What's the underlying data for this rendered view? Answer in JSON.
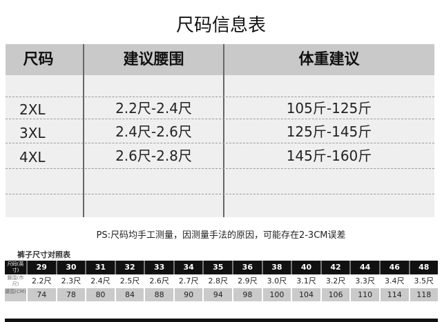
{
  "title": "尺码信息表",
  "main_table": {
    "headers": [
      "尺码",
      "建议腰围",
      "体重建议"
    ],
    "rows": [
      [
        "2XL",
        "2.2尺-2.4尺",
        "105斤-125斤"
      ],
      [
        "3XL",
        "2.4尺-2.6尺",
        "125斤-145斤"
      ],
      [
        "4XL",
        "2.6尺-2.8尺",
        "145斤-160斤"
      ]
    ]
  },
  "note": "PS:尺码均手工测量，因测量手法的原因，可能存在2-3CM误差",
  "pants_table": {
    "title": "裤子尺寸对照表",
    "row_labels": [
      "尺码(英寸)",
      "腰围(市尺)",
      "腰围(CM)"
    ],
    "sizes": [
      "29",
      "30",
      "31",
      "32",
      "33",
      "34",
      "35",
      "36",
      "38",
      "40",
      "42",
      "44",
      "46",
      "48"
    ],
    "waist_chi": [
      "2.2尺",
      "2.3尺",
      "2.4尺",
      "2.5尺",
      "2.6尺",
      "2.7尺",
      "2.8尺",
      "2.9尺",
      "3.0尺",
      "3.1尺",
      "3.2尺",
      "3.3尺",
      "3.4尺",
      "3.5尺"
    ],
    "waist_cm": [
      "74",
      "78",
      "80",
      "84",
      "88",
      "90",
      "94",
      "98",
      "100",
      "104",
      "106",
      "110",
      "114",
      "118"
    ]
  }
}
